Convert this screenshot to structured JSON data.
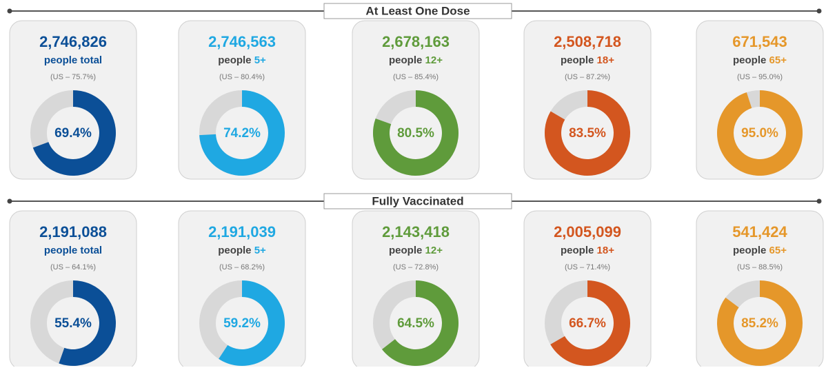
{
  "sections": [
    {
      "title": "At Least One Dose",
      "cards": [
        {
          "count": "2,746,826",
          "people": "people",
          "group": "total",
          "us": "(US – 75.7%)",
          "value": 69.4,
          "value_label": "69.4%",
          "color": "#0b4f97"
        },
        {
          "count": "2,746,563",
          "people": "people",
          "group": "5+",
          "us": "(US – 80.4%)",
          "value": 74.2,
          "value_label": "74.2%",
          "color": "#1fa8e2"
        },
        {
          "count": "2,678,163",
          "people": "people",
          "group": "12+",
          "us": "(US – 85.4%)",
          "value": 80.5,
          "value_label": "80.5%",
          "color": "#5f9b3b"
        },
        {
          "count": "2,508,718",
          "people": "people",
          "group": "18+",
          "us": "(US – 87.2%)",
          "value": 83.5,
          "value_label": "83.5%",
          "color": "#d3561f"
        },
        {
          "count": "671,543",
          "people": "people",
          "group": "65+",
          "us": "(US – 95.0%)",
          "value": 95.0,
          "value_label": "95.0%",
          "color": "#e5972a"
        }
      ]
    },
    {
      "title": "Fully Vaccinated",
      "cards": [
        {
          "count": "2,191,088",
          "people": "people",
          "group": "total",
          "us": "(US – 64.1%)",
          "value": 55.4,
          "value_label": "55.4%",
          "color": "#0b4f97"
        },
        {
          "count": "2,191,039",
          "people": "people",
          "group": "5+",
          "us": "(US – 68.2%)",
          "value": 59.2,
          "value_label": "59.2%",
          "color": "#1fa8e2"
        },
        {
          "count": "2,143,418",
          "people": "people",
          "group": "12+",
          "us": "(US – 72.8%)",
          "value": 64.5,
          "value_label": "64.5%",
          "color": "#5f9b3b"
        },
        {
          "count": "2,005,099",
          "people": "people",
          "group": "18+",
          "us": "(US – 71.4%)",
          "value": 66.7,
          "value_label": "66.7%",
          "color": "#d3561f"
        },
        {
          "count": "541,424",
          "people": "people",
          "group": "65+",
          "us": "(US – 88.5%)",
          "value": 85.2,
          "value_label": "85.2%",
          "color": "#e5972a"
        }
      ]
    }
  ]
}
